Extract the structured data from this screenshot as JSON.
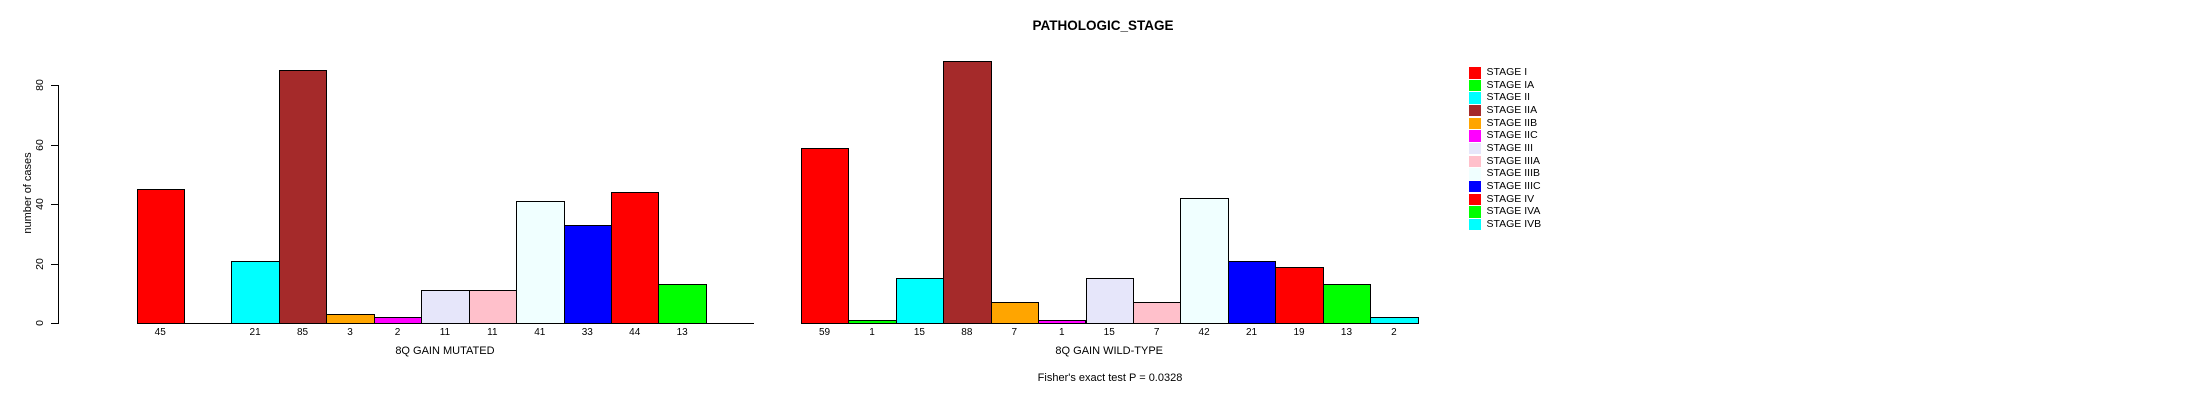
{
  "chart_data": {
    "type": "bar",
    "title": "PATHOLOGIC_STAGE",
    "ylabel": "number of cases",
    "xlabel": "",
    "ylim": [
      0,
      88
    ],
    "yticks": [
      0,
      20,
      40,
      60,
      80
    ],
    "grid": false,
    "legend_position": "right",
    "categories": [
      "STAGE I",
      "STAGE IA",
      "STAGE II",
      "STAGE IIA",
      "STAGE IIB",
      "STAGE IIC",
      "STAGE III",
      "STAGE IIIA",
      "STAGE IIIB",
      "STAGE IIIC",
      "STAGE IV",
      "STAGE IVA",
      "STAGE IVB"
    ],
    "colors": [
      "#FF0000",
      "#00FF00",
      "#00FFFF",
      "#A52A2A",
      "#FFA500",
      "#FF00FF",
      "#E6E6FA",
      "#FFC0CB",
      "#F0FFFF",
      "#0000FF",
      "#FF0000",
      "#00FF00",
      "#00FFFF"
    ],
    "series": [
      {
        "name": "8Q GAIN MUTATED",
        "values": [
          45,
          0,
          21,
          85,
          3,
          2,
          11,
          11,
          41,
          33,
          44,
          13,
          0
        ]
      },
      {
        "name": "8Q GAIN WILD-TYPE",
        "values": [
          59,
          1,
          15,
          88,
          7,
          1,
          15,
          7,
          42,
          21,
          19,
          13,
          2
        ]
      }
    ],
    "annotation": "Fisher's exact test P = 0.0328"
  },
  "colors": {
    "axis": "#000000",
    "background": "#FFFFFF",
    "text": "#000000"
  }
}
